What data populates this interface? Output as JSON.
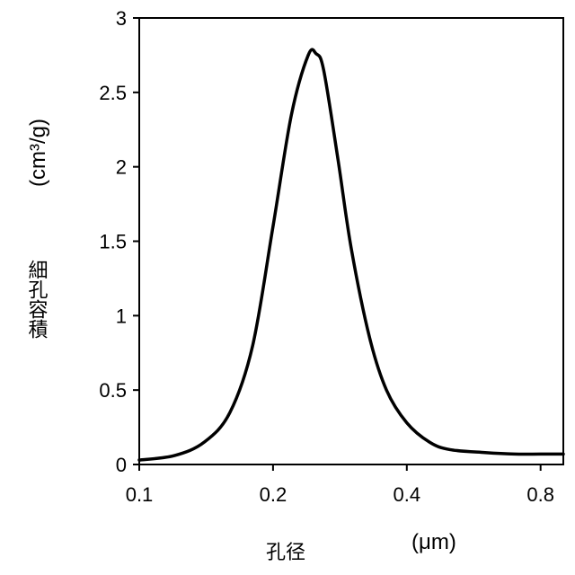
{
  "chart_data": {
    "type": "line",
    "x_scale": "log",
    "xlim": [
      0.1,
      0.9
    ],
    "ylim": [
      0,
      3
    ],
    "x_ticks": [
      0.1,
      0.2,
      0.4,
      0.8
    ],
    "x_tick_labels": [
      "0.1",
      "0.2",
      "0.4",
      "0.8"
    ],
    "y_ticks": [
      0,
      0.5,
      1,
      1.5,
      2,
      2.5,
      3
    ],
    "y_tick_labels": [
      "0",
      "0.5",
      "1",
      "1.5",
      "2",
      "2.5",
      "3"
    ],
    "xlabel": "孔径",
    "xlabel_unit": "(μm)",
    "ylabel": "細孔容積",
    "ylabel_unit": "(cm³/g)",
    "grid": false,
    "line_color": "#000000",
    "series": [
      {
        "x": [
          0.1,
          0.12,
          0.14,
          0.16,
          0.18,
          0.2,
          0.22,
          0.24,
          0.25,
          0.26,
          0.28,
          0.3,
          0.33,
          0.36,
          0.4,
          0.45,
          0.5,
          0.6,
          0.7,
          0.8,
          0.9
        ],
        "y": [
          0.03,
          0.06,
          0.15,
          0.35,
          0.8,
          1.6,
          2.35,
          2.75,
          2.76,
          2.65,
          2.05,
          1.45,
          0.85,
          0.5,
          0.28,
          0.15,
          0.1,
          0.08,
          0.07,
          0.07,
          0.07
        ]
      }
    ]
  }
}
